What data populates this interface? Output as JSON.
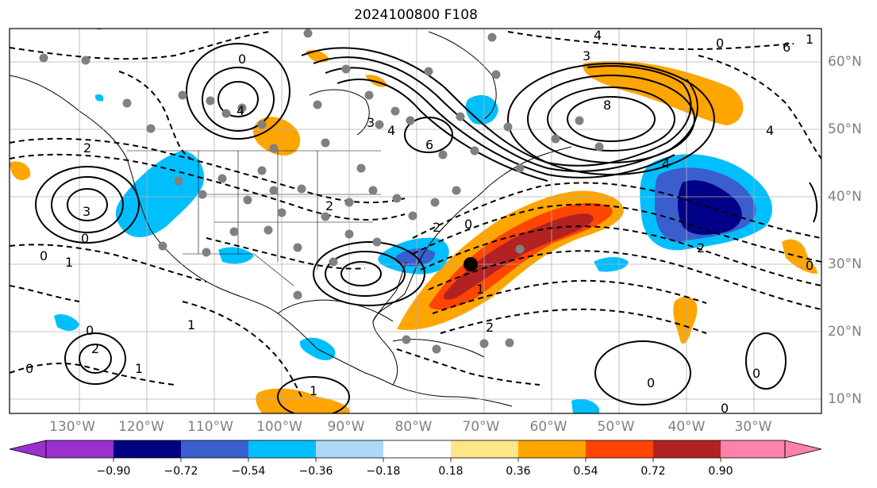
{
  "title": "2024100800 F108",
  "map": {
    "projection": "cylindrical",
    "lon_range": [
      -140,
      -20
    ],
    "lat_range": [
      8,
      65
    ],
    "lon_ticks": [
      "130°W",
      "120°W",
      "110°W",
      "100°W",
      "90°W",
      "80°W",
      "70°W",
      "60°W",
      "50°W",
      "40°W",
      "30°W"
    ],
    "lat_ticks": [
      "60°N",
      "50°N",
      "40°N",
      "30°N",
      "20°N",
      "10°N"
    ],
    "gridlines": true,
    "contour_labels": [
      "4",
      "3",
      "0",
      "1",
      "4",
      "3",
      "6",
      "8",
      "4",
      "2",
      "0",
      "3",
      "0",
      "1",
      "0",
      "6",
      "4",
      "2",
      "0",
      "0",
      "1",
      "1",
      "2",
      "1",
      "0",
      "0",
      "0",
      "0",
      "1",
      "2",
      "0",
      "2",
      "4",
      "2"
    ],
    "marker": {
      "lon": -70.3,
      "lat": 30,
      "label": "tropical cyclone center",
      "color": "#000000"
    },
    "dot_color": "#808080",
    "filled_positive_colors": [
      "#ffa500",
      "#ff4500",
      "#b22222"
    ],
    "filled_negative_colors": [
      "#00bfff",
      "#3158c8",
      "#000088"
    ]
  },
  "colorbar": {
    "levels": [
      "−0.90",
      "−0.72",
      "−0.54",
      "−0.36",
      "−0.18",
      "0.18",
      "0.36",
      "0.54",
      "0.72",
      "0.90"
    ],
    "colors": [
      "#9932cc",
      "#000080",
      "#3a5fcd",
      "#00bfff",
      "#add8f6",
      "#ffffff",
      "#fde68a",
      "#ffa500",
      "#ff4500",
      "#b22222",
      "#ff82ab"
    ]
  }
}
